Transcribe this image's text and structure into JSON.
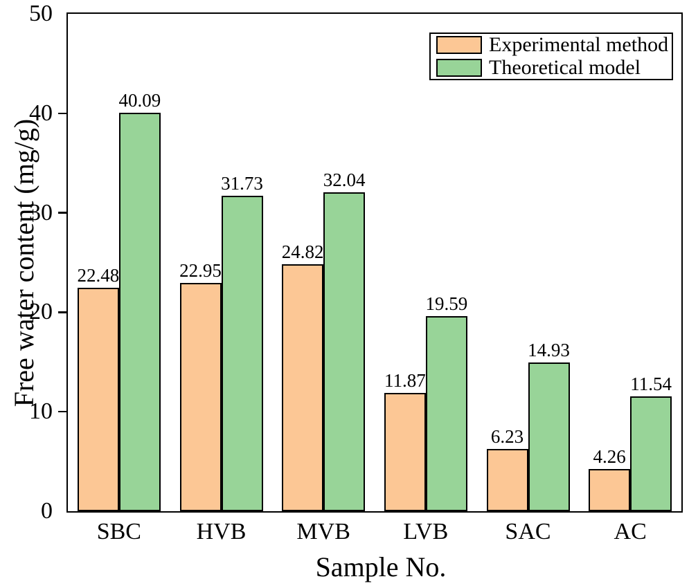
{
  "chart_data": {
    "type": "bar",
    "categories": [
      "SBC",
      "HVB",
      "MVB",
      "LVB",
      "SAC",
      "AC"
    ],
    "series": [
      {
        "name": "Experimental method",
        "color": "#FCC795",
        "values": [
          22.48,
          22.95,
          24.82,
          11.87,
          6.23,
          4.26
        ]
      },
      {
        "name": "Theoretical model",
        "color": "#98D498",
        "values": [
          40.09,
          31.73,
          32.04,
          19.59,
          14.93,
          11.54
        ]
      }
    ],
    "value_labels": [
      [
        "22.48",
        "22.95",
        "24.82",
        "11.87",
        "6.23",
        "4.26"
      ],
      [
        "40.09",
        "31.73",
        "32.04",
        "19.59",
        "14.93",
        "11.54"
      ]
    ],
    "xlabel": "Sample No.",
    "ylabel": "Free water content (mg/g)",
    "ylim": [
      0,
      50
    ],
    "yticks": [
      0,
      10,
      20,
      30,
      40,
      50
    ],
    "ytick_labels": [
      "0",
      "10",
      "20",
      "30",
      "40",
      "50"
    ],
    "grid": false,
    "legend_position": "top-right",
    "bar_edge_color": "#000000",
    "axis_color": "#000000"
  }
}
